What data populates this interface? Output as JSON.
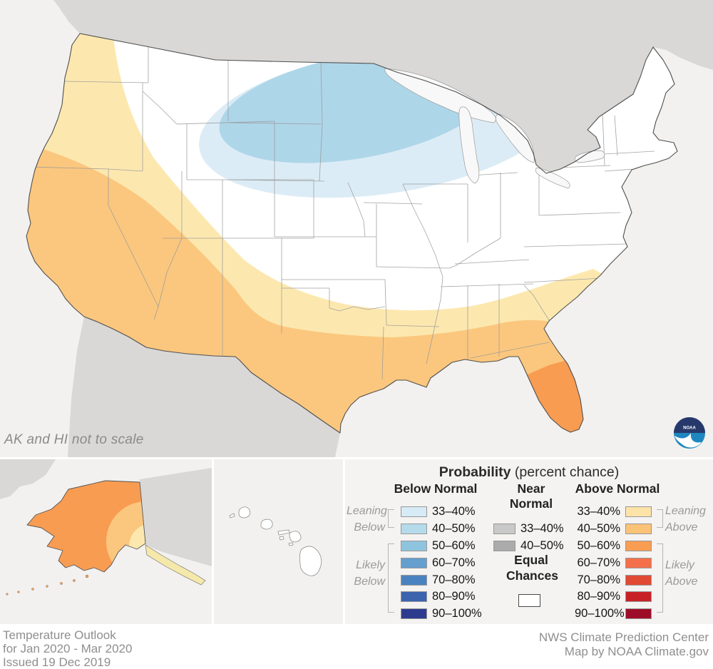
{
  "map": {
    "note": "AK and HI not to scale",
    "colors": {
      "ocean": "#f2f1ef",
      "foreign_land": "#d9d8d6",
      "us_land": "#ffffff",
      "lake_fill": "#f8f8f8",
      "state_border": "#999999",
      "nation_outline": "#4f4f4f",
      "below_33_40": "#dcecf6",
      "below_40_50": "#aed6e9",
      "above_33_40": "#fce8af",
      "above_40_50": "#fbc77e",
      "above_50_60": "#f89c52",
      "ak_panhandle": "#f5e8ab"
    },
    "areas": [
      {
        "category": "Below Normal 40–50%",
        "where": "eastern North Dakota, northern Minnesota, northern Wisconsin, upper Michigan"
      },
      {
        "category": "Below Normal 33–40%",
        "where": "northern Plains through Great Lakes fringe"
      },
      {
        "category": "Above Normal 33–40%",
        "where": "band from Pacific Northwest through the central Rockies to the Carolinas"
      },
      {
        "category": "Above Normal 40–50%",
        "where": "California, Southwest, Texas, Gulf Coast, Southeast"
      },
      {
        "category": "Above Normal 50–60%",
        "where": "Florida peninsula and most of Alaska"
      },
      {
        "category": "Equal Chances",
        "where": "remaining white areas, including Hawaii"
      }
    ]
  },
  "legend": {
    "title_bold": "Probability",
    "title_rest": " (percent chance)",
    "below": {
      "header": "Below Normal",
      "rows": [
        {
          "range": "33–40%",
          "color": "#d6ebf5"
        },
        {
          "range": "40–50%",
          "color": "#b5dbeb"
        },
        {
          "range": "50–60%",
          "color": "#8fc4de"
        },
        {
          "range": "60–70%",
          "color": "#649fce"
        },
        {
          "range": "70–80%",
          "color": "#4a82c0"
        },
        {
          "range": "80–90%",
          "color": "#3c63ae"
        },
        {
          "range": "90–100%",
          "color": "#2d3b8f"
        }
      ]
    },
    "near": {
      "header": "Near Normal",
      "rows": [
        {
          "range": "33–40%",
          "color": "#c9c9c9"
        },
        {
          "range": "40–50%",
          "color": "#ababab"
        }
      ],
      "equal_label": "Equal Chances",
      "equal_color": "#ffffff"
    },
    "above": {
      "header": "Above Normal",
      "rows": [
        {
          "range": "33–40%",
          "color": "#fde3a7"
        },
        {
          "range": "40–50%",
          "color": "#fbc377"
        },
        {
          "range": "50–60%",
          "color": "#f99d52"
        },
        {
          "range": "60–70%",
          "color": "#f4704b"
        },
        {
          "range": "70–80%",
          "color": "#e04a33"
        },
        {
          "range": "80–90%",
          "color": "#c72127"
        },
        {
          "range": "90–100%",
          "color": "#9e0d27"
        }
      ]
    },
    "groups": {
      "leaning_below": "Leaning Below",
      "likely_below": "Likely Below",
      "leaning_above": "Leaning Above",
      "likely_above": "Likely Above"
    }
  },
  "footer": {
    "left": [
      "Temperature Outlook",
      "for Jan 2020 - Mar 2020",
      "Issued 19 Dec 2019"
    ],
    "right": [
      "NWS Climate Prediction Center",
      "Map by NOAA Climate.gov"
    ]
  },
  "logo": {
    "text": "NOAA"
  }
}
